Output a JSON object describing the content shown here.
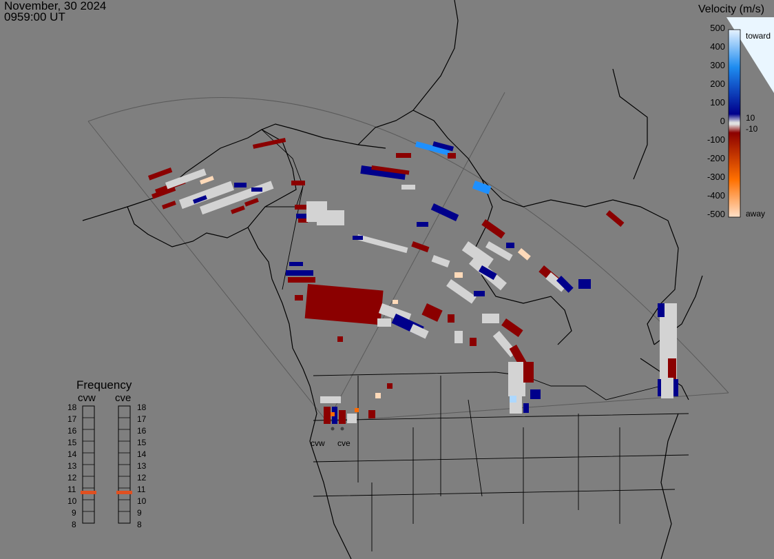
{
  "header": {
    "date": "November, 30 2024",
    "time": "0959:00 UT"
  },
  "colorbar": {
    "title": "Velocity (m/s)",
    "ticks": [
      "500",
      "400",
      "300",
      "200",
      "100",
      "0",
      "-100",
      "-200",
      "-300",
      "-400",
      "-500"
    ],
    "inner_ticks": [
      "10",
      "-10"
    ],
    "toward_label": "toward",
    "away_label": "away",
    "colors": {
      "toward_high": "#e6f2ff",
      "toward_mid": "#1e8cf0",
      "toward_low": "#00008c",
      "zero": "#e0e0e0",
      "away_low": "#8c0000",
      "away_mid": "#ff7000",
      "away_high": "#ffe0c8"
    }
  },
  "frequency_panel": {
    "title": "Frequency",
    "radars": [
      "cvw",
      "cve"
    ],
    "scale": [
      "18",
      "17",
      "16",
      "15",
      "14",
      "13",
      "12",
      "11",
      "10",
      "9",
      "8"
    ],
    "marker_color": "#e05020"
  },
  "radar_sites": {
    "left_label": "cvw",
    "right_label": "cve"
  },
  "map": {
    "background": "#7f7f7f",
    "palette": {
      "neg": "#8b0000",
      "pos": "#00008b",
      "gnd": "#d3d3d3",
      "lb": "#1e90ff",
      "away": "#ffdab9",
      "vlb": "#add8ff",
      "org": "#ff6a00"
    }
  }
}
